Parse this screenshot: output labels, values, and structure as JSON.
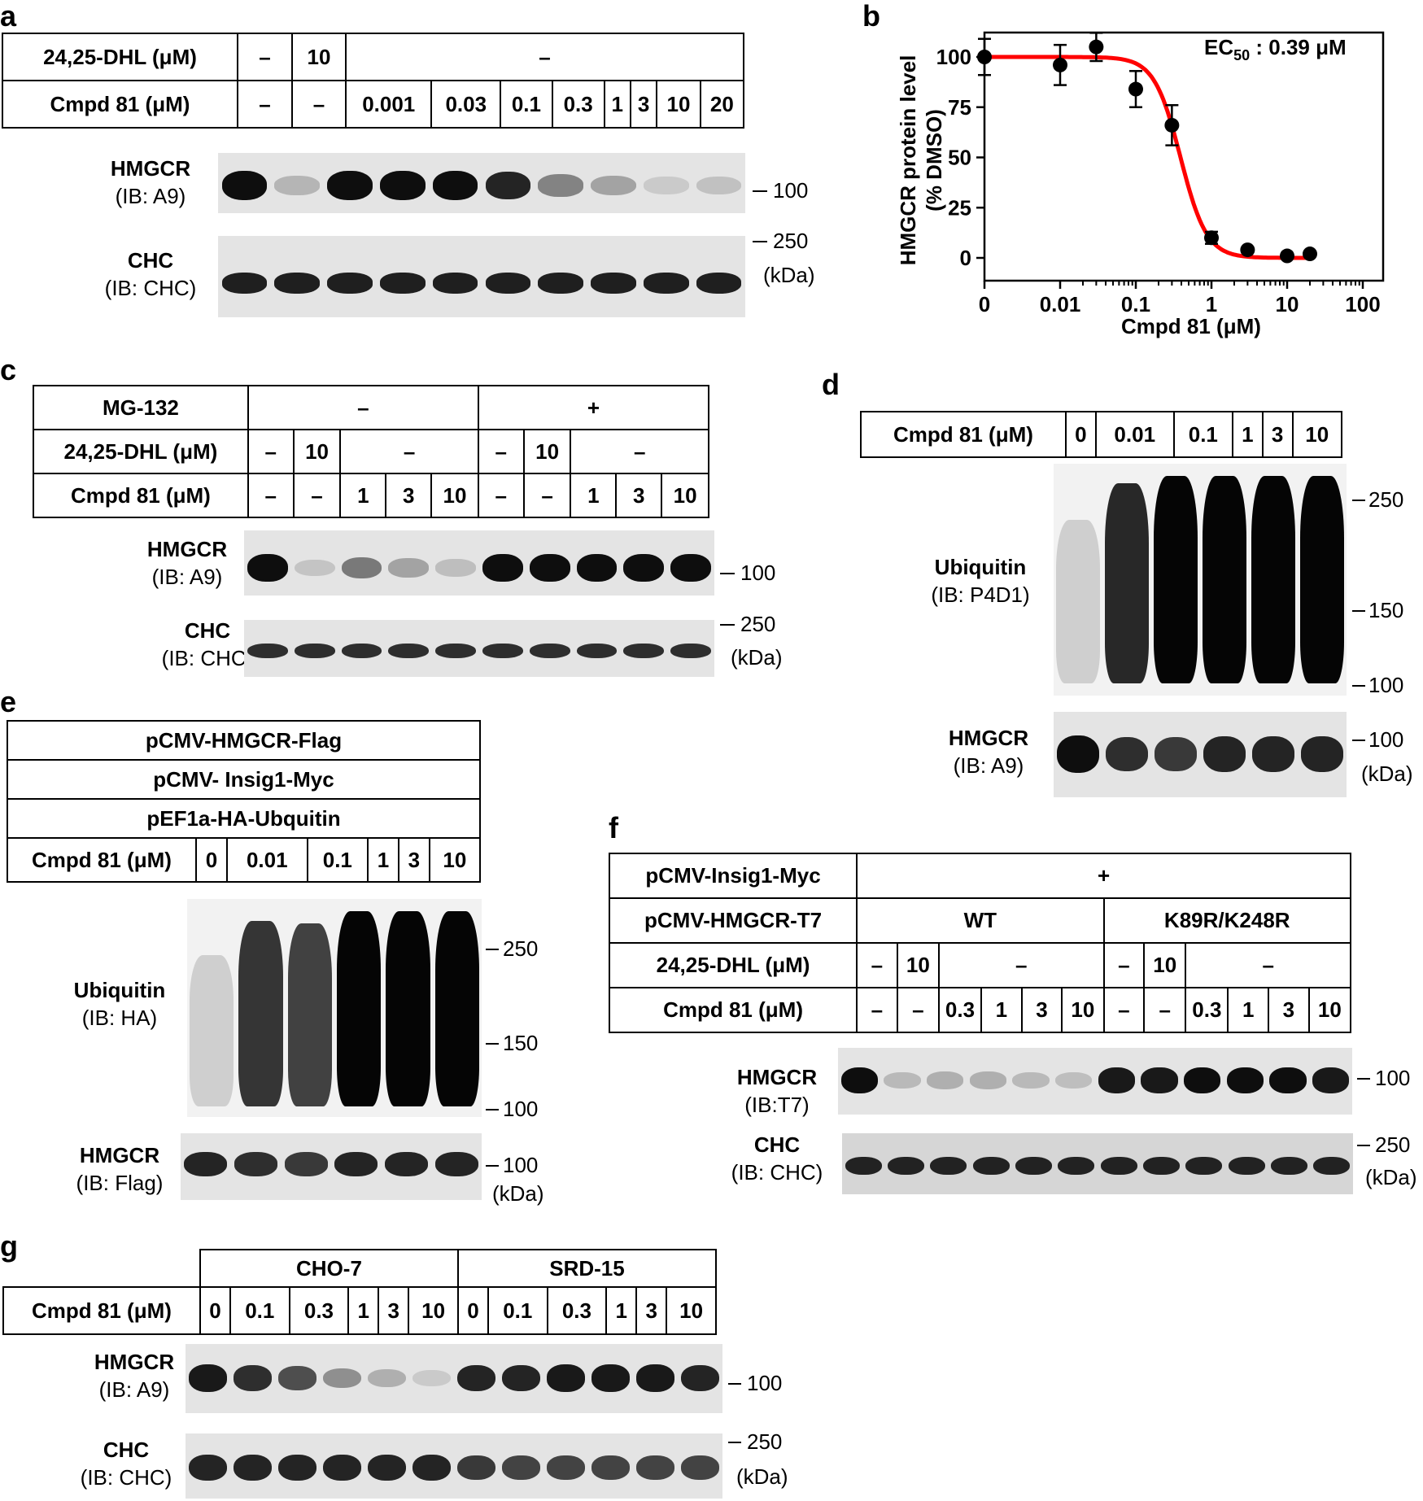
{
  "panels": {
    "a": "a",
    "b": "b",
    "c": "c",
    "d": "d",
    "e": "e",
    "f": "f",
    "g": "g"
  },
  "a": {
    "rows": [
      {
        "label": "24,25-DHL (μM)",
        "cells": [
          "–",
          "10",
          "–"
        ]
      },
      {
        "label": "Cmpd 81 (μM)",
        "cells": [
          "–",
          "–",
          "0.001",
          "0.03",
          "0.1",
          "0.3",
          "1",
          "3",
          "10",
          "20"
        ]
      }
    ],
    "blots": [
      {
        "name": "HMGCR",
        "ib": "(IB: A9)",
        "intensity": [
          1.0,
          0.22,
          1.0,
          1.0,
          1.0,
          0.9,
          0.45,
          0.3,
          0.12,
          0.16
        ]
      },
      {
        "name": "CHC",
        "ib": "(IB: CHC)",
        "intensity": [
          0.92,
          0.92,
          0.92,
          0.92,
          0.92,
          0.92,
          0.92,
          0.92,
          0.92,
          0.92
        ]
      }
    ],
    "markers": [
      "100",
      "250",
      "(kDa)"
    ]
  },
  "b": {
    "ec50": "EC",
    "ec50_sub": "50",
    "ec50_rest": " : 0.39 μM"
  },
  "chart_data": {
    "type": "scatter",
    "title": "",
    "xlabel": "Cmpd 81 (μM)",
    "ylabel_line1": "HMGCR protein level",
    "ylabel_line2": "(% DMSO)",
    "x_scale": "log",
    "x_ticks": [
      "0",
      "0.01",
      "0.1",
      "1",
      "10",
      "100"
    ],
    "y_ticks": [
      "0",
      "25",
      "50",
      "75",
      "100"
    ],
    "ylim": [
      0,
      100
    ],
    "points": [
      {
        "x": 0,
        "y": 100,
        "err": 9
      },
      {
        "x": 0.01,
        "y": 96,
        "err": 10
      },
      {
        "x": 0.03,
        "y": 105,
        "err": 7
      },
      {
        "x": 0.1,
        "y": 84,
        "err": 9
      },
      {
        "x": 0.3,
        "y": 66,
        "err": 10
      },
      {
        "x": 1,
        "y": 10,
        "err": 3
      },
      {
        "x": 3,
        "y": 4,
        "err": 1
      },
      {
        "x": 10,
        "y": 1,
        "err": 1
      },
      {
        "x": 20,
        "y": 2,
        "err": 1
      }
    ],
    "fit": {
      "top": 100,
      "bottom": 0,
      "ec50": 0.39,
      "hill": 2.5,
      "color": "#ff0000"
    }
  },
  "c": {
    "rows": [
      {
        "label": "MG-132",
        "cells": [
          "–",
          "+"
        ]
      },
      {
        "label": "24,25-DHL (μM)",
        "cells": [
          "–",
          "10",
          "–",
          "–",
          "10",
          "–"
        ]
      },
      {
        "label": "Cmpd 81 (μM)",
        "cells": [
          "–",
          "–",
          "1",
          "3",
          "10",
          "–",
          "–",
          "1",
          "3",
          "10"
        ]
      }
    ],
    "blots": [
      {
        "name": "HMGCR",
        "ib": "(IB: A9)",
        "intensity": [
          1.0,
          0.15,
          0.5,
          0.3,
          0.18,
          1.0,
          1.0,
          1.0,
          1.0,
          1.0
        ]
      },
      {
        "name": "CHC",
        "ib": "(IB: CHC)",
        "intensity": [
          0.85,
          0.85,
          0.85,
          0.85,
          0.85,
          0.85,
          0.85,
          0.85,
          0.85,
          0.85
        ]
      }
    ],
    "markers": [
      "100",
      "250",
      "(kDa)"
    ]
  },
  "d": {
    "rows": [
      {
        "label": "Cmpd 81 (μM)",
        "cells": [
          "0",
          "0.01",
          "0.1",
          "1",
          "3",
          "10"
        ]
      }
    ],
    "blots": [
      {
        "name": "Ubiquitin",
        "ib": "(IB: P4D1)",
        "smear": [
          0.1,
          0.85,
          1.0,
          1.0,
          1.0,
          1.0
        ]
      },
      {
        "name": "HMGCR",
        "ib": "(IB: A9)",
        "intensity": [
          1.0,
          0.85,
          0.8,
          0.9,
          0.9,
          0.9
        ]
      }
    ],
    "markers": [
      "250",
      "150",
      "100",
      "100",
      "(kDa)"
    ]
  },
  "e": {
    "plasmids": [
      "pCMV-HMGCR-Flag",
      "pCMV- Insig1-Myc",
      "pEF1a-HA-Ubquitin"
    ],
    "rows": [
      {
        "label": "Cmpd 81 (μM)",
        "cells": [
          "0",
          "0.01",
          "0.1",
          "1",
          "3",
          "10"
        ]
      }
    ],
    "blots": [
      {
        "name": "Ubiquitin",
        "ib": "(IB: HA)",
        "smear": [
          0.1,
          0.8,
          0.75,
          1.0,
          1.0,
          1.0
        ]
      },
      {
        "name": "HMGCR",
        "ib": "(IB: Flag)",
        "intensity": [
          0.9,
          0.85,
          0.8,
          0.9,
          0.9,
          0.9
        ]
      }
    ],
    "markers": [
      "250",
      "150",
      "100",
      "100",
      "(kDa)"
    ]
  },
  "f": {
    "rows": [
      {
        "label": "pCMV-Insig1-Myc",
        "cells": [
          "+"
        ]
      },
      {
        "label": "pCMV-HMGCR-T7",
        "cells": [
          "WT",
          "K89R/K248R"
        ]
      },
      {
        "label": "24,25-DHL (μM)",
        "cells": [
          "–",
          "10",
          "–",
          "–",
          "10",
          "–"
        ]
      },
      {
        "label": "Cmpd 81 (μM)",
        "cells": [
          "–",
          "–",
          "0.3",
          "1",
          "3",
          "10",
          "–",
          "–",
          "0.3",
          "1",
          "3",
          "10"
        ]
      }
    ],
    "blots": [
      {
        "name": "HMGCR",
        "ib": "(IB:T7)",
        "intensity": [
          1.0,
          0.2,
          0.25,
          0.25,
          0.2,
          0.18,
          0.95,
          0.95,
          1.0,
          1.0,
          1.0,
          0.95
        ]
      },
      {
        "name": "CHC",
        "ib": "(IB: CHC)",
        "intensity": [
          0.9,
          0.9,
          0.9,
          0.9,
          0.9,
          0.9,
          0.9,
          0.9,
          0.9,
          0.9,
          0.9,
          0.9
        ]
      }
    ],
    "markers": [
      "100",
      "250",
      "(kDa)"
    ]
  },
  "g": {
    "rows": [
      {
        "label": "",
        "cells": [
          "CHO-7",
          "SRD-15"
        ]
      },
      {
        "label": "Cmpd 81 (μM)",
        "cells": [
          "0",
          "0.1",
          "0.3",
          "1",
          "3",
          "10",
          "0",
          "0.1",
          "0.3",
          "1",
          "3",
          "10"
        ]
      }
    ],
    "blots": [
      {
        "name": "HMGCR",
        "ib": "(IB: A9)",
        "intensity": [
          0.95,
          0.85,
          0.7,
          0.4,
          0.25,
          0.12,
          0.9,
          0.9,
          0.95,
          0.95,
          0.95,
          0.9
        ]
      },
      {
        "name": "CHC",
        "ib": "(IB: CHC)",
        "intensity": [
          0.9,
          0.9,
          0.9,
          0.9,
          0.9,
          0.9,
          0.8,
          0.75,
          0.75,
          0.75,
          0.75,
          0.75
        ]
      }
    ],
    "markers": [
      "100",
      "250",
      "(kDa)"
    ]
  }
}
